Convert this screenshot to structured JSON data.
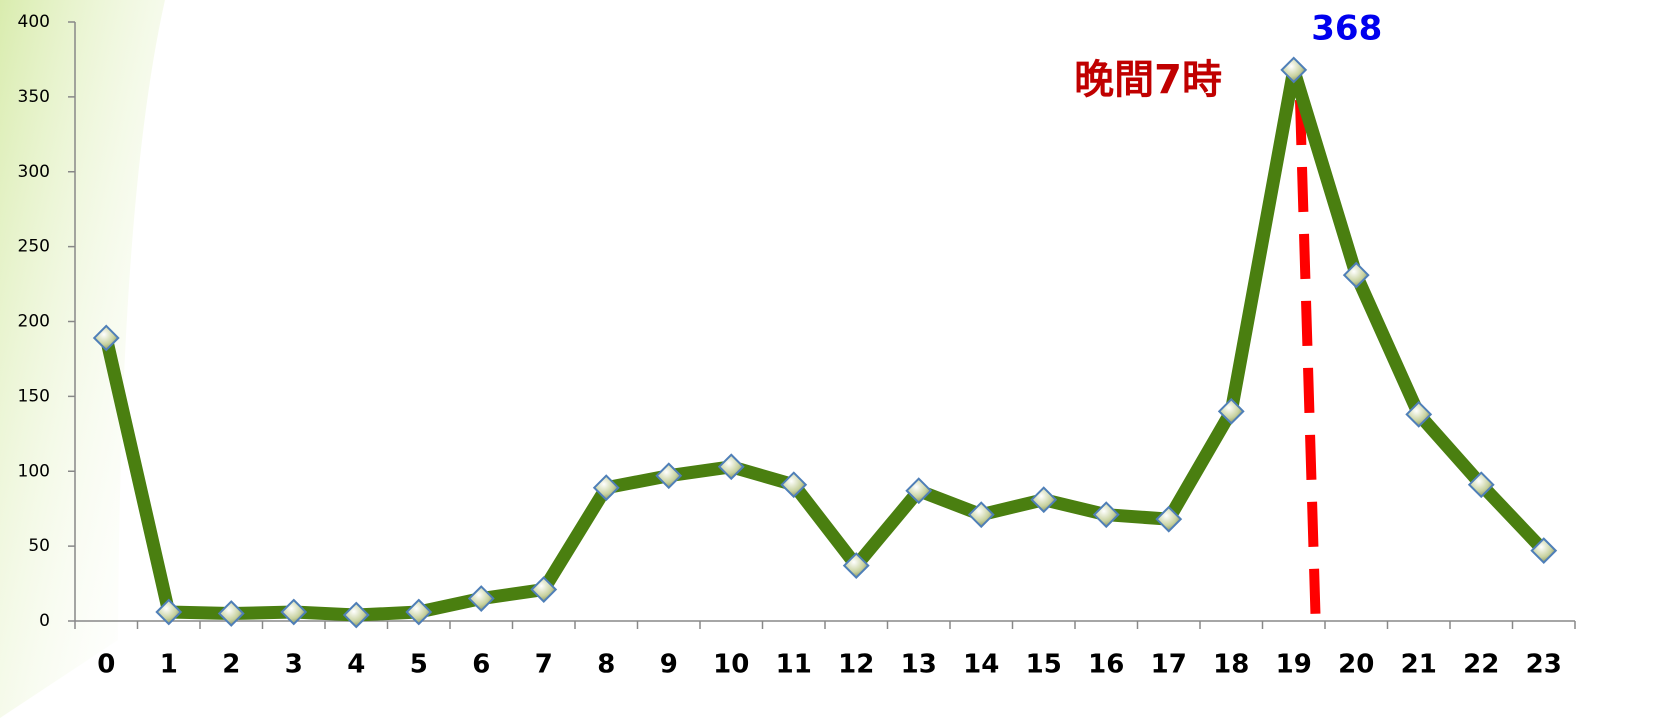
{
  "chart_data": {
    "type": "line",
    "categories": [
      "0",
      "1",
      "2",
      "3",
      "4",
      "5",
      "6",
      "7",
      "8",
      "9",
      "10",
      "11",
      "12",
      "13",
      "14",
      "15",
      "16",
      "17",
      "18",
      "19",
      "20",
      "21",
      "22",
      "23"
    ],
    "series": [
      {
        "name": null,
        "color": "#4a7f10",
        "values": [
          189,
          6,
          5,
          6,
          4,
          6,
          15,
          21,
          89,
          97,
          103,
          91,
          37,
          87,
          71,
          81,
          71,
          68,
          140,
          368,
          231,
          138,
          91,
          47
        ]
      }
    ],
    "ylim": [
      0,
      400
    ],
    "yticks": [
      0,
      50,
      100,
      150,
      200,
      250,
      300,
      350,
      400
    ],
    "annotation": "晚間7時",
    "labeled_point": 19
  }
}
